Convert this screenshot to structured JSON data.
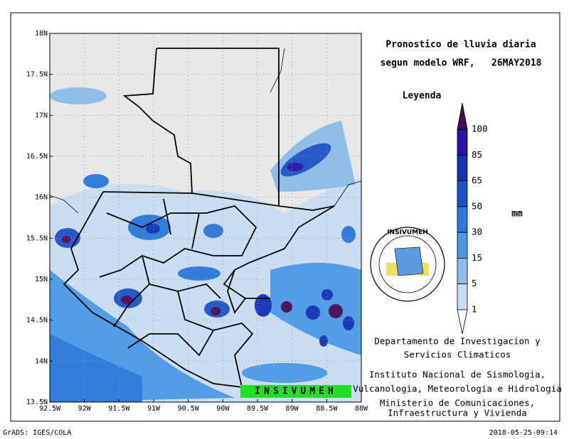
{
  "title": [
    "Pronostico de lluvia diaria",
    "segun modelo WRF,   26MAY2018"
  ],
  "legend": {
    "title": "Leyenda",
    "unit": "mm",
    "levels": [
      "100",
      "85",
      "65",
      "50",
      "30",
      "15",
      "5",
      "1"
    ],
    "colors": [
      "#4a0a55",
      "#2a12a8",
      "#1232b8",
      "#1e52c8",
      "#2a78da",
      "#4a9ae6",
      "#8dbbea",
      "#c9ddf2",
      "#ffffff"
    ]
  },
  "axes": {
    "x": [
      "92.5W",
      "92W",
      "91.5W",
      "91W",
      "90.5W",
      "90W",
      "89.5W",
      "89W",
      "88.5W",
      "88W"
    ],
    "y": [
      "18N",
      "17.5N",
      "17N",
      "16.5N",
      "16N",
      "15.5N",
      "15N",
      "14.5N",
      "14N",
      "13.5N"
    ]
  },
  "stamp": "INSIVUMEH",
  "logo": "INSIVUMEH",
  "credits": [
    "Departamento de Investigacion y",
    "Servicios Climaticos",
    "Instituto Nacional de Sismologia,",
    "Vulcanologia, Meteorologia e Hidrologia",
    "Ministerio de Comunicaciones,",
    "Infraestructura y Vivienda"
  ],
  "footer": {
    "left": "GrADS: IGES/COLA",
    "right": "2018-05-25-09:14"
  }
}
